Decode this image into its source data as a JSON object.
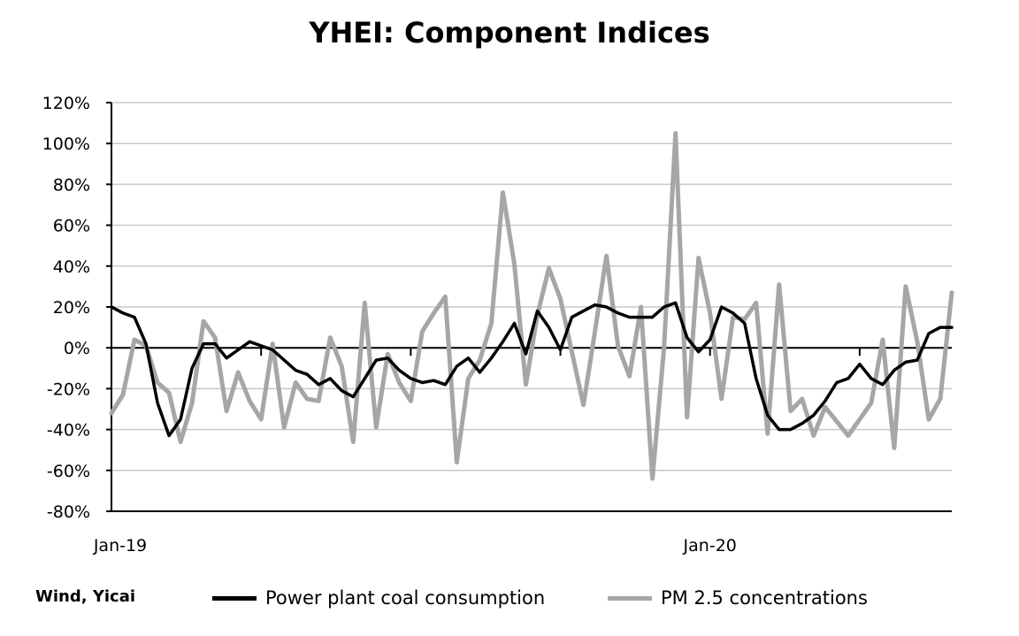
{
  "chart_data": {
    "type": "line",
    "title": "YHEI: Component Indices",
    "source": "Wind, Yicai",
    "ylim": [
      -80,
      120
    ],
    "yticks": [
      "120%",
      "100%",
      "80%",
      "60%",
      "40%",
      "20%",
      "0%",
      "-20%",
      "-40%",
      "-60%",
      "-80%"
    ],
    "x_tick_labels": [
      {
        "label": "Jan-19",
        "index": 0
      },
      {
        "label": "Jan-20",
        "index": 52
      }
    ],
    "n_points": 74,
    "legend_position": "bottom",
    "grid": true,
    "series": [
      {
        "name": "Power plant coal consumption",
        "color": "#000000",
        "values": [
          20,
          17,
          15,
          2,
          -27,
          -43,
          -35,
          -10,
          2,
          2,
          -5,
          -1,
          3,
          1,
          -1,
          -6,
          -11,
          -13,
          -18,
          -15,
          -21,
          -24,
          -15,
          -6,
          -5,
          -11,
          -15,
          -17,
          -16,
          -18,
          -9,
          -5,
          -12,
          -5,
          3,
          12,
          -3,
          18,
          10,
          -1,
          15,
          18,
          21,
          20,
          17,
          15,
          15,
          15,
          20,
          22,
          5,
          -2,
          4,
          20,
          17,
          12,
          -15,
          -33,
          -40,
          -40,
          -37,
          -33,
          -26,
          -17,
          -15,
          -8,
          -15,
          -18,
          -11,
          -7,
          -6,
          7,
          10,
          10
        ]
      },
      {
        "name": "PM 2.5 concentrations",
        "color": "#a6a6a6",
        "values": [
          -32,
          -23,
          4,
          1,
          -17,
          -22,
          -46,
          -27,
          13,
          5,
          -31,
          -12,
          -26,
          -35,
          2,
          -39,
          -17,
          -25,
          -26,
          5,
          -9,
          -46,
          22,
          -39,
          -3,
          -17,
          -26,
          8,
          17,
          25,
          -56,
          -15,
          -6,
          12,
          76,
          41,
          -18,
          16,
          39,
          24,
          -2,
          -28,
          8,
          45,
          1,
          -14,
          20,
          -64,
          0,
          105,
          -34,
          44,
          17,
          -25,
          15,
          14,
          22,
          -42,
          31,
          -31,
          -25,
          -43,
          -29,
          -36,
          -43,
          -35,
          -27,
          4,
          -49,
          30,
          3,
          -35,
          -25,
          27
        ]
      }
    ]
  }
}
